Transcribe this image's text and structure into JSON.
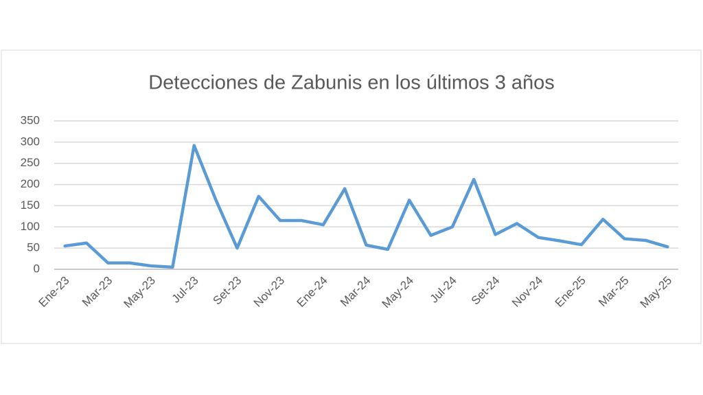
{
  "chart_data": {
    "type": "line",
    "title": "Detecciones de Zabunis en los últimos 3 años",
    "categories": [
      "Ene-23",
      null,
      "Mar-23",
      null,
      "May-23",
      null,
      "Jul-23",
      null,
      "Set-23",
      null,
      "Nov-23",
      null,
      "Ene-24",
      null,
      "Mar-24",
      null,
      "May-24",
      null,
      "Jul-24",
      null,
      "Set-24",
      null,
      "Nov-24",
      null,
      "Ene-25",
      null,
      "Mar-25",
      null,
      "May-25"
    ],
    "series": [
      {
        "name": "Detecciones",
        "color": "#5b9bd5",
        "values": [
          55,
          62,
          15,
          15,
          8,
          5,
          292,
          165,
          50,
          172,
          115,
          115,
          105,
          190,
          57,
          47,
          163,
          80,
          100,
          212,
          82,
          108,
          75,
          67,
          58,
          118,
          72,
          68,
          53
        ]
      }
    ],
    "ylim": [
      0,
      350
    ],
    "yticks": [
      0,
      50,
      100,
      150,
      200,
      250,
      300,
      350
    ],
    "grid": true
  }
}
